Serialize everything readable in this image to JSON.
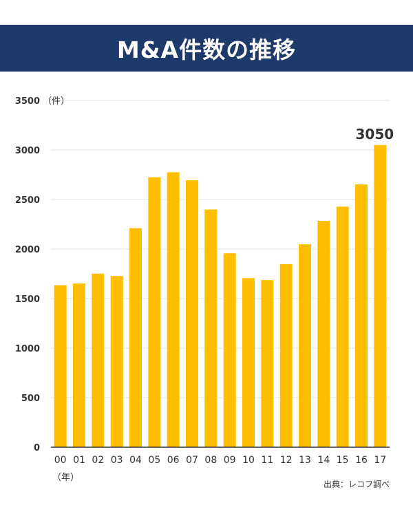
{
  "title": "M&A件数の推移",
  "colors": {
    "banner": "#1e3a6b",
    "bar": "#ffbf00",
    "grid": "#e6e6e6",
    "axis": "#333333"
  },
  "chart_data": {
    "type": "bar",
    "ylabel": "（件）",
    "xlabel": "（年）",
    "source": "出典：レコフ調べ",
    "annotation": "3050",
    "ylim": [
      0,
      3500
    ],
    "yticks": [
      0,
      500,
      1000,
      1500,
      2000,
      2500,
      3000,
      3500
    ],
    "grid": true,
    "categories": [
      "00",
      "01",
      "02",
      "03",
      "04",
      "05",
      "06",
      "07",
      "08",
      "09",
      "10",
      "11",
      "12",
      "13",
      "14",
      "15",
      "16",
      "17"
    ],
    "values": [
      1635,
      1653,
      1752,
      1728,
      2211,
      2725,
      2775,
      2696,
      2399,
      1957,
      1707,
      1687,
      1848,
      2048,
      2285,
      2428,
      2652,
      3050
    ]
  }
}
